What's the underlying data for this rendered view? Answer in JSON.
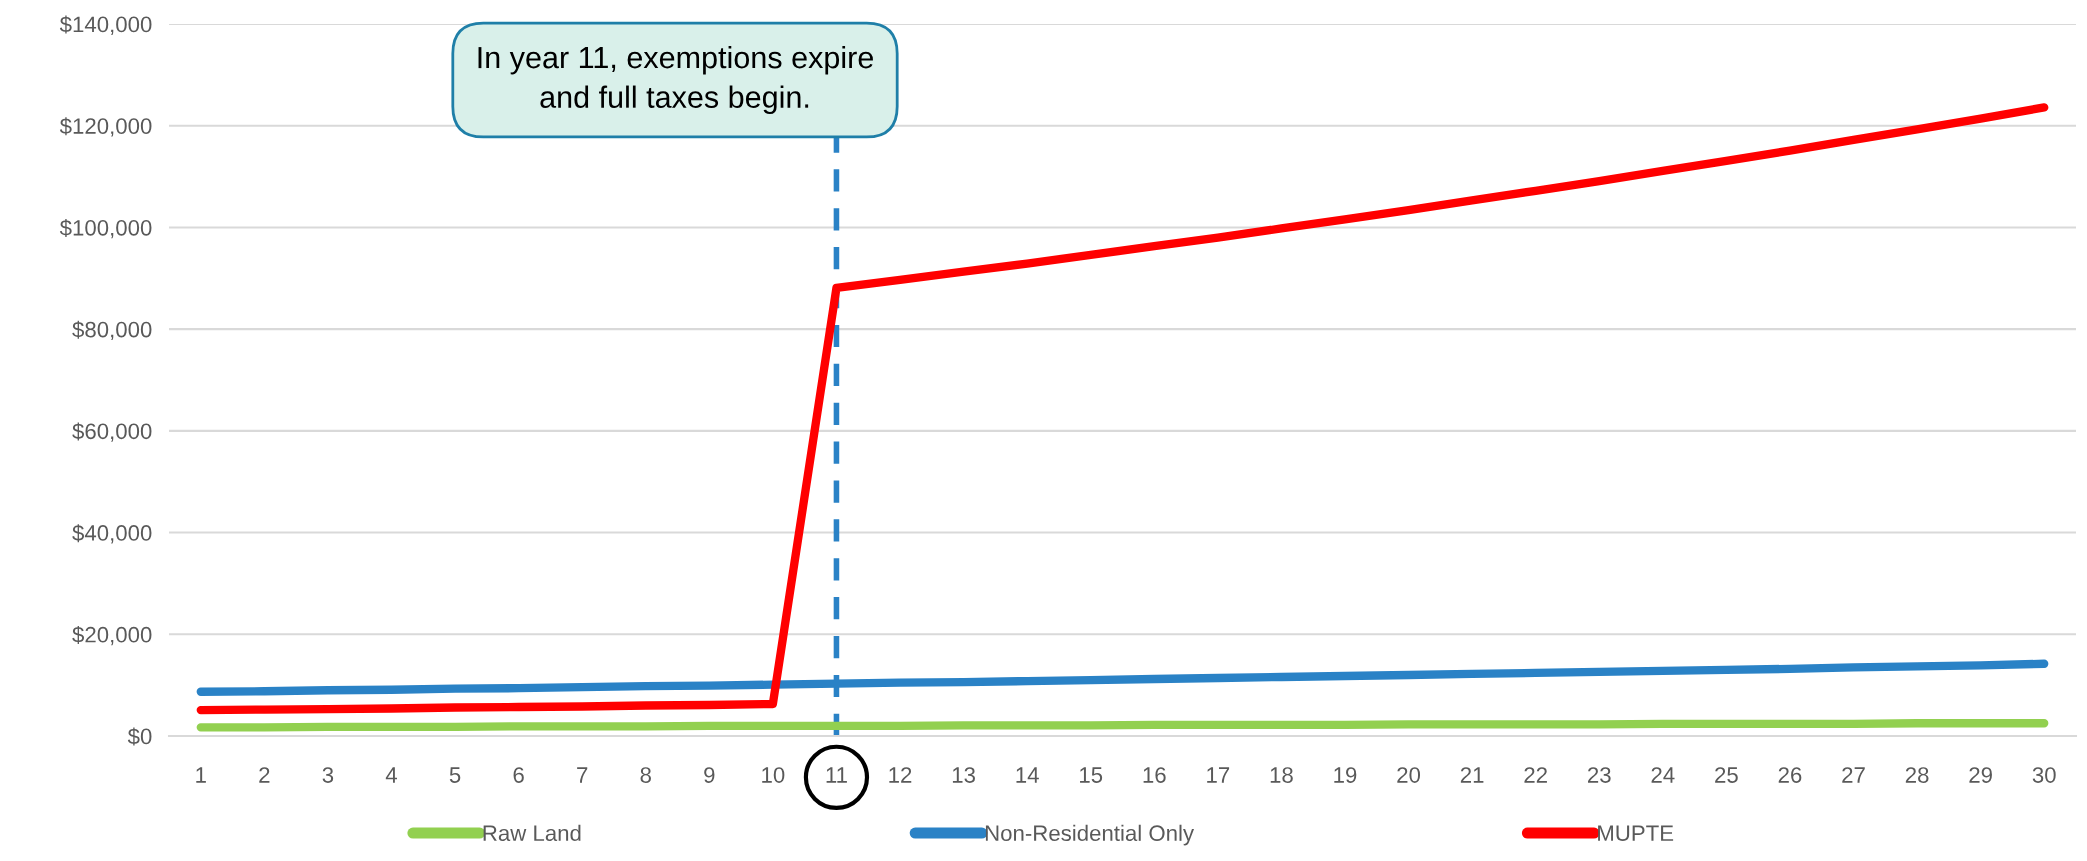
{
  "chart_data": {
    "type": "line",
    "categories": [
      "1",
      "2",
      "3",
      "4",
      "5",
      "6",
      "7",
      "8",
      "9",
      "10",
      "11",
      "12",
      "13",
      "14",
      "15",
      "16",
      "17",
      "18",
      "19",
      "20",
      "21",
      "22",
      "23",
      "24",
      "25",
      "26",
      "27",
      "28",
      "29",
      "30"
    ],
    "series": [
      {
        "name": "Raw Land",
        "color": "#92d050",
        "values": [
          1700,
          1700,
          1800,
          1800,
          1800,
          1900,
          1900,
          1900,
          2000,
          2000,
          2000,
          2000,
          2100,
          2100,
          2100,
          2200,
          2200,
          2200,
          2200,
          2300,
          2300,
          2300,
          2300,
          2400,
          2400,
          2400,
          2400,
          2500,
          2500,
          2500
        ]
      },
      {
        "name": "Non-Residential Only",
        "color": "#2a82c6",
        "values": [
          8700,
          8800,
          9000,
          9100,
          9300,
          9400,
          9600,
          9800,
          9900,
          10100,
          10300,
          10500,
          10600,
          10800,
          11000,
          11200,
          11400,
          11600,
          11800,
          12000,
          12200,
          12400,
          12600,
          12800,
          13000,
          13200,
          13500,
          13700,
          13900,
          14200
        ]
      },
      {
        "name": "MUPTE",
        "color": "#ff0000",
        "values": [
          5100,
          5200,
          5300,
          5400,
          5600,
          5700,
          5800,
          6000,
          6100,
          6300,
          88100,
          89700,
          91300,
          92900,
          94600,
          96300,
          98000,
          99800,
          101600,
          103400,
          105300,
          107200,
          109100,
          111100,
          113100,
          115100,
          117200,
          119300,
          121400,
          123600
        ]
      }
    ],
    "ylim": [
      0,
      140000
    ],
    "yticks": [
      {
        "value": 0,
        "label": "$0"
      },
      {
        "value": 20000,
        "label": "$20,000"
      },
      {
        "value": 40000,
        "label": "$40,000"
      },
      {
        "value": 60000,
        "label": "$60,000"
      },
      {
        "value": 80000,
        "label": "$80,000"
      },
      {
        "value": 100000,
        "label": "$100,000"
      },
      {
        "value": 120000,
        "label": "$120,000"
      },
      {
        "value": 140000,
        "label": "$140,000"
      }
    ],
    "grid": "y",
    "legend": "bottom",
    "marker": "none",
    "line_style": "solid",
    "ref_lines": [
      {
        "axis": "x",
        "value": "11",
        "color": "#2a82c6",
        "line_style": "dashed"
      }
    ],
    "annotations": [
      "In year 11, exemptions expire\nand full taxes begin."
    ]
  }
}
